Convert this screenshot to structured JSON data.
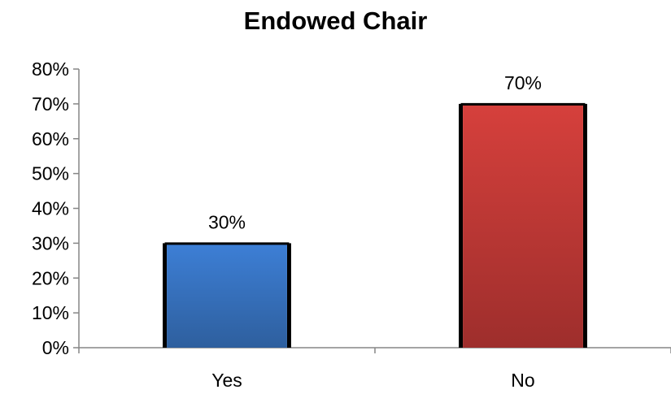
{
  "chart_data": {
    "type": "bar",
    "title": "Endowed Chair",
    "categories": [
      "Yes",
      "No"
    ],
    "values": [
      30,
      70
    ],
    "data_labels": [
      "30%",
      "70%"
    ],
    "colors": [
      "#3b78cf",
      "#cf3b37"
    ],
    "yticks": [
      0,
      10,
      20,
      30,
      40,
      50,
      60,
      70,
      80
    ],
    "ytick_labels": [
      "0%",
      "10%",
      "20%",
      "30%",
      "40%",
      "50%",
      "60%",
      "70%",
      "80%"
    ],
    "ylim": [
      0,
      80
    ],
    "grid": false,
    "legend": "none"
  }
}
